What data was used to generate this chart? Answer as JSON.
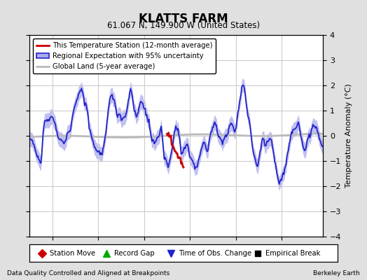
{
  "title": "KLATTS FARM",
  "subtitle": "61.067 N, 149.900 W (United States)",
  "ylabel": "Temperature Anomaly (°C)",
  "footer_left": "Data Quality Controlled and Aligned at Breakpoints",
  "footer_right": "Berkeley Earth",
  "xlim": [
    1932.5,
    1964.5
  ],
  "ylim": [
    -4,
    4
  ],
  "yticks": [
    -4,
    -3,
    -2,
    -1,
    0,
    1,
    2,
    3,
    4
  ],
  "xticks": [
    1935,
    1940,
    1945,
    1950,
    1955,
    1960
  ],
  "background_color": "#e0e0e0",
  "plot_bg_color": "#ffffff",
  "grid_color": "#cccccc",
  "regional_line_color": "#2222cc",
  "regional_fill_color": "#aaaaee",
  "station_line_color": "#cc0000",
  "global_land_color": "#bbbbbb",
  "legend_box_color": "#ffffff",
  "legend_border_color": "#000000",
  "time_of_obs_marker_color": "#2222cc",
  "station_move_color": "#cc0000",
  "record_gap_color": "#00aa00",
  "empirical_break_color": "#000000"
}
